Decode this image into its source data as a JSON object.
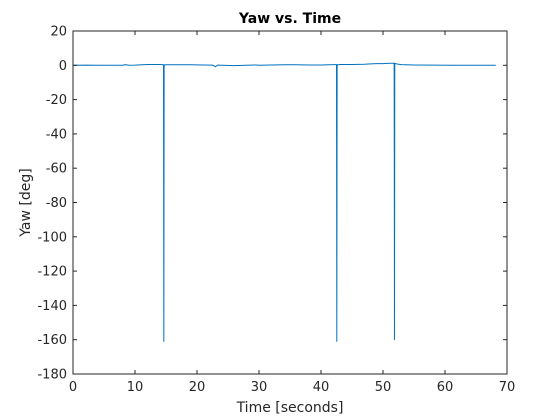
{
  "chart_data": {
    "type": "line",
    "title": "Yaw vs. Time",
    "xlabel": "Time [seconds]",
    "ylabel": "Yaw [deg]",
    "xlim": [
      0,
      70
    ],
    "ylim": [
      -180,
      20
    ],
    "xticks": [
      0,
      10,
      20,
      30,
      40,
      50,
      60,
      70
    ],
    "yticks": [
      20,
      0,
      -20,
      -40,
      -60,
      -80,
      -100,
      -120,
      -140,
      -160,
      -180
    ],
    "grid": false,
    "series": [
      {
        "color": "#0072BD",
        "x": [
          0,
          2,
          4,
          6,
          8,
          8.5,
          9,
          10,
          12,
          14,
          14.6,
          14.65,
          14.7,
          14.8,
          15,
          17,
          19,
          21,
          22.5,
          23,
          23.3,
          24,
          26,
          28,
          29.5,
          30,
          32,
          34,
          36,
          38,
          40,
          42,
          42.5,
          42.55,
          42.6,
          42.7,
          43,
          45,
          47,
          48,
          49,
          50,
          51,
          51.8,
          51.85,
          51.9,
          52,
          52.5,
          53,
          55,
          58,
          61,
          64,
          66,
          68.2
        ],
        "y": [
          0,
          0.1,
          0,
          0,
          0,
          0.4,
          0,
          0.1,
          0.5,
          0.5,
          0.3,
          -161,
          0.3,
          0.2,
          0.3,
          0.3,
          0.3,
          0.2,
          0.1,
          -0.8,
          0.1,
          0,
          -0.2,
          0,
          0.2,
          0,
          0.2,
          0.3,
          0.3,
          0.2,
          0.2,
          0.4,
          0.4,
          -161,
          0.4,
          0.2,
          0.5,
          0.5,
          0.6,
          0.8,
          1,
          1,
          1.2,
          1.2,
          -160,
          1.2,
          1,
          0.6,
          0.4,
          0.2,
          0.1,
          0,
          0,
          0,
          0
        ]
      }
    ]
  }
}
